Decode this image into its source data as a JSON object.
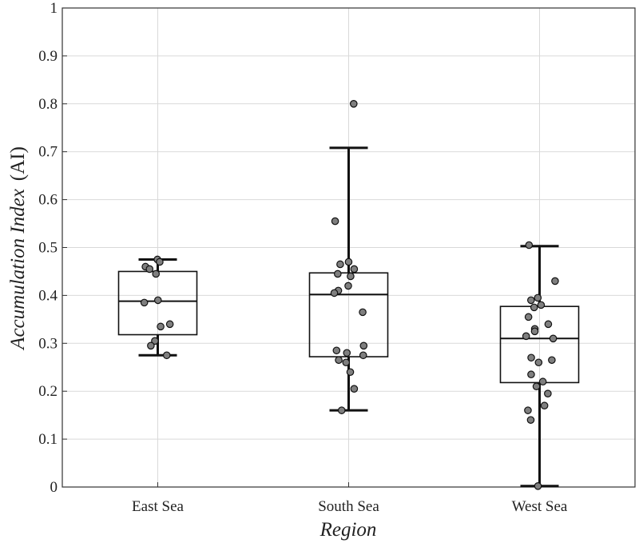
{
  "chart_data": {
    "type": "box",
    "xlabel": "Region",
    "ylabel_main": "Accumulation Index",
    "ylabel_unit": "(AI)",
    "ylim": [
      0,
      1
    ],
    "yticks": [
      "0",
      "0.1",
      "0.2",
      "0.3",
      "0.4",
      "0.5",
      "0.6",
      "0.7",
      "0.8",
      "0.9",
      "1"
    ],
    "grid": true,
    "categories": [
      "East Sea",
      "South Sea",
      "West Sea"
    ],
    "boxes": [
      {
        "category": "East Sea",
        "whisker_low": 0.275,
        "q1": 0.318,
        "median": 0.388,
        "q3": 0.45,
        "whisker_high": 0.475,
        "points": [
          0.475,
          0.47,
          0.46,
          0.455,
          0.445,
          0.39,
          0.385,
          0.34,
          0.335,
          0.305,
          0.295,
          0.275
        ]
      },
      {
        "category": "South Sea",
        "whisker_low": 0.16,
        "q1": 0.272,
        "median": 0.402,
        "q3": 0.447,
        "whisker_high": 0.708,
        "points": [
          0.8,
          0.555,
          0.47,
          0.465,
          0.455,
          0.445,
          0.44,
          0.42,
          0.41,
          0.405,
          0.365,
          0.295,
          0.285,
          0.28,
          0.275,
          0.265,
          0.26,
          0.24,
          0.205,
          0.16
        ]
      },
      {
        "category": "West Sea",
        "whisker_low": 0.002,
        "q1": 0.218,
        "median": 0.31,
        "q3": 0.377,
        "whisker_high": 0.503,
        "points": [
          0.505,
          0.43,
          0.395,
          0.39,
          0.38,
          0.375,
          0.355,
          0.34,
          0.33,
          0.325,
          0.315,
          0.31,
          0.27,
          0.265,
          0.26,
          0.235,
          0.22,
          0.21,
          0.195,
          0.17,
          0.16,
          0.14,
          0.002
        ]
      }
    ]
  }
}
